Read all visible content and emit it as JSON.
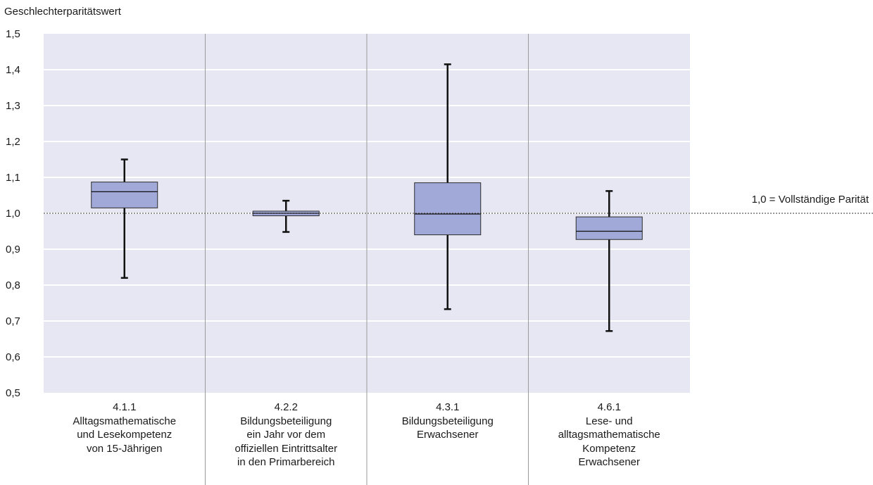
{
  "chart_data": {
    "type": "boxplot",
    "ylabel": "Geschlechterparitätswert",
    "ylim": [
      0.5,
      1.5
    ],
    "yticks": [
      "0,5",
      "0,6",
      "0,7",
      "0,8",
      "0,9",
      "1,0",
      "1,1",
      "1,2",
      "1,3",
      "1,4",
      "1,5"
    ],
    "reference_line": {
      "value": 1.0,
      "label": "1,0 = Vollständige Parität"
    },
    "grid": true,
    "categories": [
      {
        "code": "4.1.1",
        "lines": [
          "Alltagsmathematische",
          "und Lesekompetenz",
          "von 15-Jährigen"
        ]
      },
      {
        "code": "4.2.2",
        "lines": [
          "Bildungsbeteiligung",
          "ein Jahr vor dem",
          "offiziellen Eintrittsalter",
          "in den Primarbereich"
        ]
      },
      {
        "code": "4.3.1",
        "lines": [
          "Bildungsbeteiligung",
          "Erwachsener"
        ]
      },
      {
        "code": "4.6.1",
        "lines": [
          "Lese- und",
          "alltagsmathematische",
          "Kompetenz",
          "Erwachsener"
        ]
      }
    ],
    "boxes": [
      {
        "min": 0.82,
        "q1": 1.015,
        "median": 1.06,
        "q3": 1.087,
        "max": 1.15
      },
      {
        "min": 0.948,
        "q1": 0.993,
        "median": 1.0,
        "q3": 1.006,
        "max": 1.035
      },
      {
        "min": 0.733,
        "q1": 0.94,
        "median": 0.998,
        "q3": 1.085,
        "max": 1.415
      },
      {
        "min": 0.672,
        "q1": 0.927,
        "median": 0.95,
        "q3": 0.99,
        "max": 1.062
      }
    ],
    "colors": {
      "plot_bg": "#e7e7f3",
      "box_fill": "#a0a9d7",
      "box_stroke": "#2b2b2b",
      "grid": "#ffffff",
      "separator": "#9a9a9a"
    }
  }
}
